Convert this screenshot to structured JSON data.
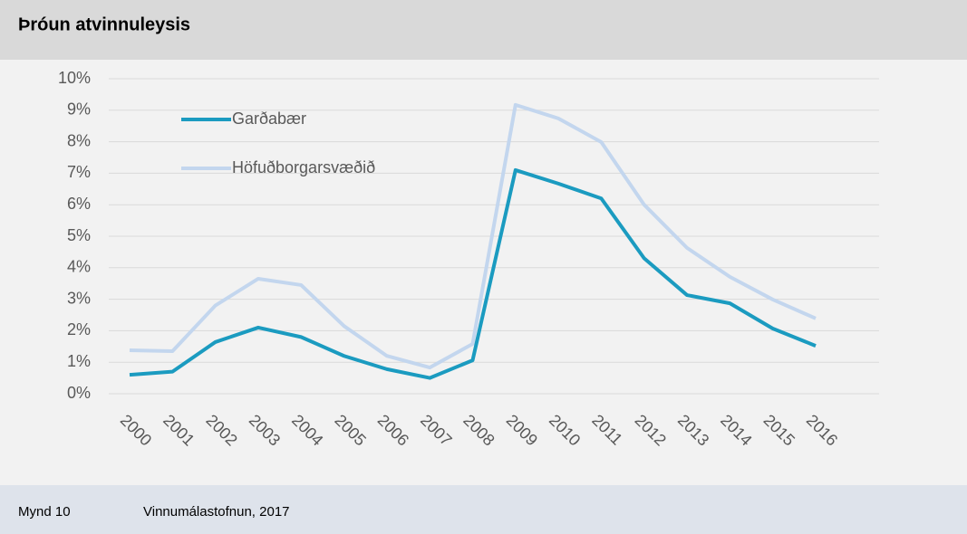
{
  "header": {
    "title": "Þróun atvinnuleysis"
  },
  "chart_data": {
    "type": "line",
    "categories": [
      "2000",
      "2001",
      "2002",
      "2003",
      "2004",
      "2005",
      "2006",
      "2007",
      "2008",
      "2009",
      "2010",
      "2011",
      "2012",
      "2013",
      "2014",
      "2015",
      "2016"
    ],
    "series": [
      {
        "name": "Garðabær",
        "color": "#1b9bc0",
        "values": [
          0.6,
          0.7,
          1.64,
          2.1,
          1.8,
          1.2,
          0.78,
          0.5,
          1.06,
          7.1,
          6.67,
          6.2,
          4.3,
          3.13,
          2.87,
          2.07,
          1.52
        ]
      },
      {
        "name": "Höfuðborgarsvæðið",
        "color": "#c3d6ee",
        "values": [
          1.38,
          1.35,
          2.8,
          3.65,
          3.45,
          2.15,
          1.2,
          0.83,
          1.58,
          9.17,
          8.74,
          7.99,
          6.0,
          4.63,
          3.71,
          2.99,
          2.39
        ]
      }
    ],
    "ylim": [
      0,
      10
    ],
    "yticks": [
      {
        "value": 0,
        "label": "0%"
      },
      {
        "value": 1,
        "label": "1%"
      },
      {
        "value": 2,
        "label": "2%"
      },
      {
        "value": 3,
        "label": "3%"
      },
      {
        "value": 4,
        "label": "4%"
      },
      {
        "value": 5,
        "label": "5%"
      },
      {
        "value": 6,
        "label": "6%"
      },
      {
        "value": 7,
        "label": "7%"
      },
      {
        "value": 8,
        "label": "8%"
      },
      {
        "value": 9,
        "label": "9%"
      },
      {
        "value": 10,
        "label": "10%"
      }
    ],
    "grid": true,
    "legend": "upper left"
  },
  "footer": {
    "figure": "Mynd 10",
    "source": "Vinnumálastofnun, 2017"
  }
}
